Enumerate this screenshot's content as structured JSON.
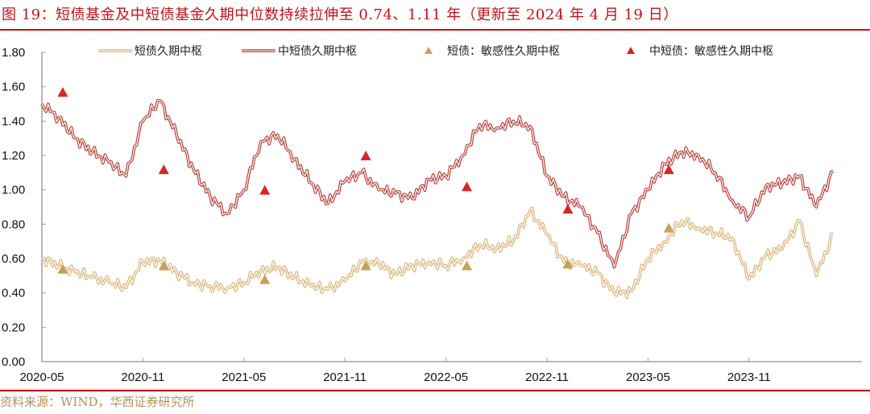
{
  "header": {
    "title": "图 19：短债基金及中短债基金久期中位数持续拉伸至 0.74、1.11 年（更新至 2024 年 4 月 19 日）"
  },
  "footer": {
    "source": "资料来源：WIND，华西证券研究所"
  },
  "colors": {
    "title_red": "#c0111a",
    "short_line": "#d9b478",
    "mid_short_line": "#b8403a",
    "short_marker": "#c9a05a",
    "mid_short_marker": "#d62728",
    "source_text": "#b4905a"
  },
  "legend": [
    {
      "label": "短债久期中枢",
      "type": "line",
      "color": "#d9b478"
    },
    {
      "label": "中短债久期中枢",
      "type": "line",
      "color": "#b8403a"
    },
    {
      "label": "短债：敏感性久期中枢",
      "type": "marker",
      "color": "#c9a05a"
    },
    {
      "label": "中短债：敏感性久期中枢",
      "type": "marker",
      "color": "#d62728"
    }
  ],
  "chart_data": {
    "type": "line",
    "title": "图 19：短债基金及中短债基金久期中位数持续拉伸至 0.74、1.11 年（更新至 2024 年 4 月 19 日）",
    "xlabel": "",
    "ylabel": "",
    "ylim": [
      0,
      1.8
    ],
    "yticks": [
      "0.00",
      "0.20",
      "0.40",
      "0.60",
      "0.80",
      "1.00",
      "1.20",
      "1.40",
      "1.60",
      "1.80"
    ],
    "xticks": [
      "2020-05",
      "2020-11",
      "2021-05",
      "2021-11",
      "2022-05",
      "2022-11",
      "2023-05",
      "2023-11"
    ],
    "grid": false,
    "legend_position": "top",
    "x": [
      "2020-05",
      "2020-06",
      "2020-07",
      "2020-08",
      "2020-09",
      "2020-10",
      "2020-11",
      "2020-12",
      "2021-01",
      "2021-02",
      "2021-03",
      "2021-04",
      "2021-05",
      "2021-06",
      "2021-07",
      "2021-08",
      "2021-09",
      "2021-10",
      "2021-11",
      "2021-12",
      "2022-01",
      "2022-02",
      "2022-03",
      "2022-04",
      "2022-05",
      "2022-06",
      "2022-07",
      "2022-08",
      "2022-09",
      "2022-10",
      "2022-11",
      "2022-12",
      "2023-01",
      "2023-02",
      "2023-03",
      "2023-04",
      "2023-05",
      "2023-06",
      "2023-07",
      "2023-08",
      "2023-09",
      "2023-10",
      "2023-11",
      "2023-12",
      "2024-01",
      "2024-02",
      "2024-03",
      "2024-04"
    ],
    "series": [
      {
        "name": "短债久期中枢",
        "values": [
          0.6,
          0.56,
          0.52,
          0.49,
          0.46,
          0.43,
          0.58,
          0.59,
          0.52,
          0.46,
          0.44,
          0.43,
          0.46,
          0.53,
          0.55,
          0.49,
          0.44,
          0.42,
          0.47,
          0.58,
          0.57,
          0.51,
          0.56,
          0.58,
          0.56,
          0.6,
          0.68,
          0.66,
          0.7,
          0.88,
          0.74,
          0.58,
          0.56,
          0.52,
          0.4,
          0.41,
          0.6,
          0.7,
          0.82,
          0.78,
          0.75,
          0.72,
          0.48,
          0.62,
          0.66,
          0.82,
          0.5,
          0.74
        ]
      },
      {
        "name": "中短债久期中枢",
        "values": [
          1.5,
          1.42,
          1.3,
          1.22,
          1.16,
          1.08,
          1.4,
          1.52,
          1.32,
          1.12,
          0.96,
          0.86,
          1.0,
          1.28,
          1.32,
          1.18,
          1.04,
          0.92,
          1.05,
          1.1,
          1.0,
          0.98,
          0.95,
          1.06,
          1.08,
          1.2,
          1.38,
          1.36,
          1.4,
          1.37,
          1.08,
          0.96,
          0.9,
          0.75,
          0.55,
          0.86,
          1.0,
          1.15,
          1.22,
          1.2,
          1.1,
          0.94,
          0.84,
          1.02,
          1.04,
          1.08,
          0.9,
          1.11
        ]
      },
      {
        "name": "短债：敏感性久期中枢",
        "type": "scatter",
        "x": [
          "2020-06",
          "2020-12",
          "2021-06",
          "2021-12",
          "2022-06",
          "2022-12",
          "2023-06"
        ],
        "values": [
          0.54,
          0.56,
          0.48,
          0.56,
          0.56,
          0.57,
          0.78
        ]
      },
      {
        "name": "中短债：敏感性久期中枢",
        "type": "scatter",
        "x": [
          "2020-06",
          "2020-12",
          "2021-06",
          "2021-12",
          "2022-06",
          "2022-12",
          "2023-06"
        ],
        "values": [
          1.57,
          1.12,
          1.0,
          1.2,
          1.02,
          0.89,
          1.12
        ]
      }
    ]
  }
}
